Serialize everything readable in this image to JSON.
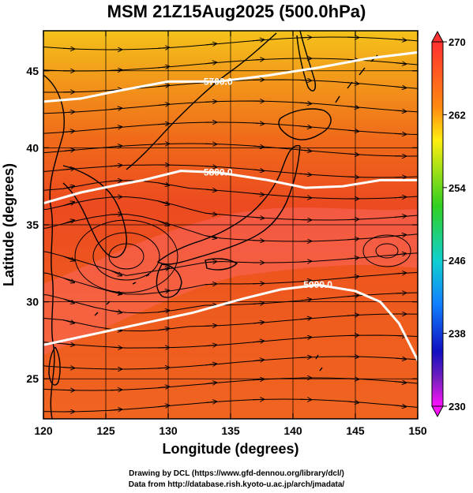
{
  "title": "MSM 21Z15Aug2025 (500.0hPa)",
  "chart_data": {
    "type": "map",
    "xlabel": "Longitude (degrees)",
    "ylabel": "Latitude  (degrees)",
    "xlim": [
      120,
      150
    ],
    "ylim": [
      22.4,
      47.6
    ],
    "x_ticks": [
      120,
      125,
      130,
      135,
      140,
      145,
      150
    ],
    "y_ticks": [
      25,
      30,
      35,
      40,
      45
    ],
    "grid": true,
    "colorbar": {
      "ticks": [
        230,
        238,
        246,
        254,
        262,
        270
      ],
      "min": 230,
      "max": 270,
      "colors": [
        "#ff00ff",
        "#0000ff",
        "#00ffff",
        "#00ff00",
        "#ffff00",
        "#ff0000"
      ]
    },
    "contours": [
      {
        "label": "5700.0",
        "points": [
          [
            120,
            43.0
          ],
          [
            123,
            43.2
          ],
          [
            126,
            43.7
          ],
          [
            130,
            44.3
          ],
          [
            134,
            44.3
          ],
          [
            138,
            44.7
          ],
          [
            142,
            45.2
          ],
          [
            146,
            45.8
          ],
          [
            150,
            46.2
          ]
        ]
      },
      {
        "label": "5800.0",
        "points": [
          [
            120,
            36.4
          ],
          [
            123,
            37.1
          ],
          [
            126,
            37.6
          ],
          [
            128,
            37.9
          ],
          [
            131,
            38.5
          ],
          [
            134,
            38.4
          ],
          [
            138,
            37.9
          ],
          [
            141,
            37.4
          ],
          [
            144,
            37.5
          ],
          [
            147,
            37.9
          ],
          [
            150,
            37.9
          ]
        ]
      },
      {
        "label": "5900.0",
        "points": [
          [
            120,
            27.2
          ],
          [
            124,
            27.9
          ],
          [
            128,
            28.6
          ],
          [
            132,
            29.3
          ],
          [
            136,
            30.2
          ],
          [
            139,
            30.8
          ],
          [
            142,
            31.1
          ],
          [
            145,
            30.7
          ],
          [
            147,
            30.0
          ],
          [
            148.5,
            28.6
          ],
          [
            149.5,
            27.0
          ],
          [
            150,
            26.2
          ]
        ]
      }
    ]
  },
  "footer": {
    "line1": "Drawing by DCL (https://www.gfd-dennou.org/library/dcl/)",
    "line2": "Data from http://database.rish.kyoto-u.ac.jp/arch/jmadata/"
  }
}
